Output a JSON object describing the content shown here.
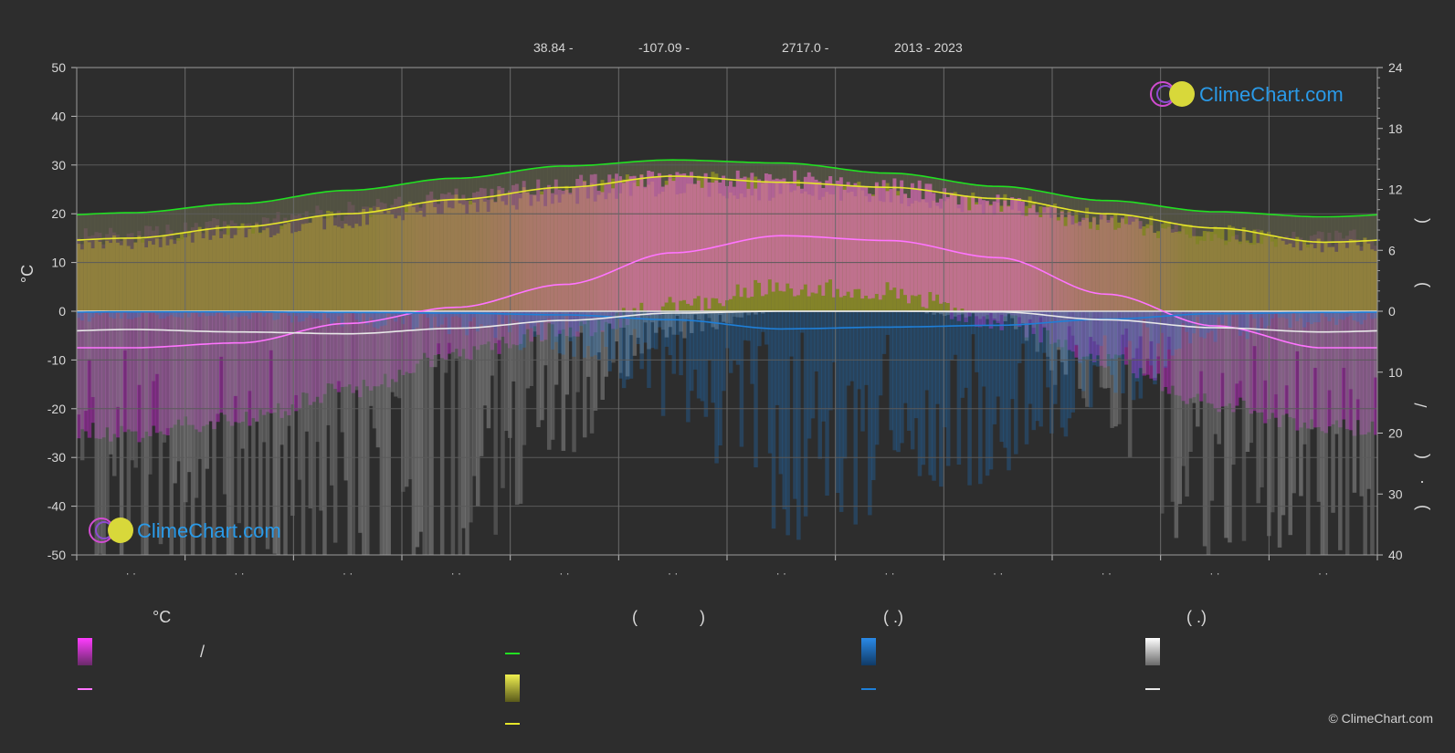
{
  "meta": {
    "latitude": "38.84 -",
    "longitude": "-107.09 -",
    "elevation": "2717.0 -",
    "years": "2013 - 2023"
  },
  "colors": {
    "background": "#2d2d2d",
    "grid": "#5a5a5a",
    "daylight": "#22e022",
    "sunshine": "#e6e62a",
    "temp_range_pos": "#d86ab8",
    "temp_range_neg": "#b12cb8",
    "temp_mean": "#ff74ff",
    "rain": "#1e7fd8",
    "snow": "#e8e8e8",
    "sun_band": "#8c8c24"
  },
  "brand": {
    "name": "ClimeChart.com",
    "copyright": "© ClimeChart.com"
  },
  "legend": {
    "temp_header": "°C",
    "slash": "/",
    "sun_header_open": "(",
    "sun_header_close": ")",
    "rain_header": "(   .)",
    "snow_header": "(   .)"
  },
  "chart_data": {
    "type": "line",
    "months_x": [
      0.5,
      1.5,
      2.5,
      3.5,
      4.5,
      5.5,
      6.5,
      7.5,
      8.5,
      9.5,
      10.5,
      11.5
    ],
    "x_tick_labels": [
      "· ·",
      "· ·",
      "· ·",
      "· ·",
      "· ·",
      "· ·",
      "· ·",
      "· ·",
      "· ·",
      "· ·",
      "· ·",
      "· ·"
    ],
    "left_axis": {
      "label": "°C",
      "ylim": [
        -50,
        50
      ],
      "ticks": [
        50,
        40,
        30,
        20,
        10,
        0,
        -10,
        -20,
        -30,
        -40,
        -50
      ]
    },
    "right_axis_top": {
      "ylim": [
        0,
        24
      ],
      "ticks": [
        24,
        18,
        12,
        6,
        0
      ]
    },
    "right_axis_bottom": {
      "ylim": [
        0,
        40
      ],
      "ticks": [
        10,
        20,
        30,
        40
      ]
    },
    "right_axis_label_glyphs": [
      "(",
      ")",
      "/",
      "(",
      "·",
      ")"
    ],
    "series": [
      {
        "key": "daylight",
        "axis": "hours",
        "values": [
          9.7,
          10.6,
          11.9,
          13.1,
          14.3,
          14.9,
          14.6,
          13.6,
          12.3,
          10.9,
          9.8,
          9.3
        ]
      },
      {
        "key": "sunshine",
        "axis": "hours",
        "values": [
          7.2,
          8.3,
          9.6,
          11.0,
          12.2,
          13.3,
          12.7,
          12.2,
          11.1,
          9.6,
          8.2,
          6.8
        ]
      },
      {
        "key": "max_temp",
        "axis": "celsius",
        "values": [
          17.5,
          19.5,
          22.5,
          25.5,
          28,
          29,
          29,
          27.5,
          24,
          20,
          17.5,
          17
        ]
      },
      {
        "key": "mean_temp",
        "axis": "celsius",
        "values": [
          -7.5,
          -6.5,
          -2.5,
          0.8,
          5.5,
          12,
          15.5,
          14.5,
          11,
          3.5,
          -3,
          -7.5
        ]
      },
      {
        "key": "min_temp",
        "axis": "celsius",
        "values": [
          -27,
          -24,
          -18,
          -11,
          -6,
          -1,
          3,
          2,
          -4,
          -12,
          -21,
          -26
        ]
      },
      {
        "key": "rain",
        "axis": "mm",
        "values": [
          0.1,
          0.1,
          0.2,
          0.3,
          0.6,
          1.4,
          2.9,
          2.6,
          2.3,
          1.3,
          0.4,
          0.2
        ]
      },
      {
        "key": "snow",
        "axis": "mm",
        "values": [
          3.0,
          3.4,
          3.7,
          2.8,
          1.5,
          0.3,
          0,
          0,
          0.1,
          1.4,
          2.7,
          3.4
        ]
      }
    ]
  }
}
